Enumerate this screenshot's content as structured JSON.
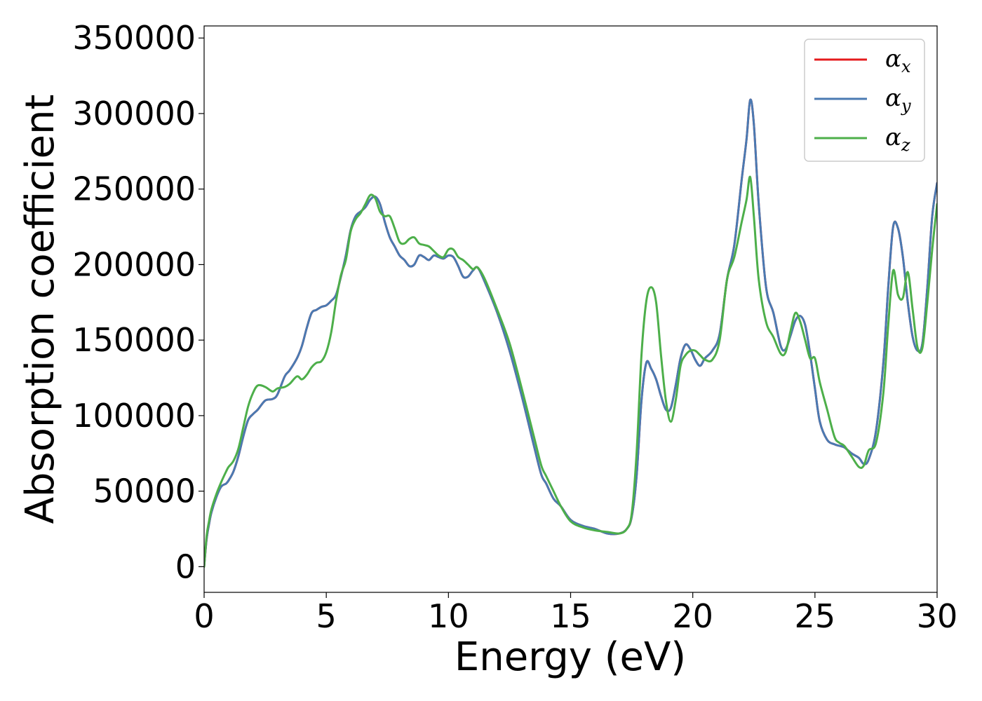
{
  "chart_data": {
    "type": "line",
    "xlabel": "Energy (eV)",
    "ylabel": "Absorption coefficient",
    "xlim": [
      0,
      30
    ],
    "ylim": [
      -17000,
      358000
    ],
    "xticks": [
      0,
      5,
      10,
      15,
      20,
      25,
      30
    ],
    "yticks": [
      0,
      50000,
      100000,
      150000,
      200000,
      250000,
      300000,
      350000
    ],
    "grid": false,
    "legend_position": "top-right",
    "series": [
      {
        "name": "αx",
        "legend_symbol": "α",
        "legend_subscript": "x",
        "color": "#e41a1c",
        "x": [
          0,
          0.1,
          0.2,
          0.3,
          0.5,
          0.7,
          0.9,
          1.0,
          1.2,
          1.4,
          1.6,
          1.8,
          2.0,
          2.2,
          2.5,
          2.8,
          3.0,
          3.3,
          3.5,
          3.8,
          4.0,
          4.2,
          4.4,
          4.6,
          4.8,
          5.0,
          5.2,
          5.4,
          5.6,
          5.8,
          6.0,
          6.2,
          6.4,
          6.6,
          6.8,
          7.0,
          7.2,
          7.4,
          7.6,
          7.8,
          8.0,
          8.2,
          8.4,
          8.6,
          8.8,
          9.0,
          9.2,
          9.4,
          9.6,
          9.8,
          10.0,
          10.2,
          10.4,
          10.6,
          10.8,
          11.0,
          11.2,
          11.5,
          12.0,
          12.5,
          13.0,
          13.5,
          13.8,
          14.0,
          14.3,
          14.6,
          15.0,
          15.5,
          16.0,
          16.5,
          17.0,
          17.3,
          17.5,
          17.7,
          17.9,
          18.1,
          18.3,
          18.5,
          18.7,
          18.9,
          19.1,
          19.3,
          19.5,
          19.7,
          19.9,
          20.1,
          20.3,
          20.5,
          20.8,
          21.1,
          21.4,
          21.7,
          22.0,
          22.2,
          22.35,
          22.5,
          22.7,
          23.0,
          23.3,
          23.6,
          23.8,
          24.0,
          24.2,
          24.4,
          24.6,
          24.8,
          25.0,
          25.2,
          25.5,
          25.8,
          26.0,
          26.2,
          26.5,
          26.8,
          27.0,
          27.2,
          27.5,
          27.8,
          28.0,
          28.2,
          28.4,
          28.6,
          28.8,
          29.0,
          29.2,
          29.4,
          29.6,
          29.8,
          30.0
        ],
        "values": [
          0,
          18000,
          28000,
          36000,
          46000,
          53000,
          55000,
          57000,
          63000,
          73000,
          86000,
          97000,
          101000,
          104000,
          110000,
          111000,
          114000,
          126000,
          130000,
          138000,
          146000,
          158000,
          168000,
          170000,
          172000,
          173000,
          176000,
          180000,
          192000,
          206000,
          223000,
          232000,
          235000,
          238000,
          243000,
          245000,
          240000,
          228000,
          218000,
          212000,
          206000,
          203000,
          199000,
          200000,
          206000,
          205000,
          203000,
          206000,
          205000,
          204000,
          206000,
          205000,
          199000,
          192000,
          192000,
          196000,
          198000,
          188000,
          168000,
          143000,
          113000,
          80000,
          61000,
          55000,
          45000,
          40000,
          31000,
          27000,
          25000,
          22000,
          22000,
          25000,
          33000,
          60000,
          110000,
          135000,
          131000,
          124000,
          113000,
          104000,
          105000,
          120000,
          138000,
          147000,
          144000,
          137000,
          133000,
          138000,
          143000,
          154000,
          190000,
          213000,
          256000,
          283000,
          309000,
          293000,
          240000,
          185000,
          168000,
          146000,
          144000,
          153000,
          163000,
          166000,
          160000,
          141000,
          118000,
          96000,
          84000,
          81000,
          80000,
          79000,
          75000,
          72000,
          68000,
          71000,
          90000,
          135000,
          185000,
          225000,
          224000,
          205000,
          175000,
          152000,
          143000,
          148000,
          185000,
          232000,
          254000
        ]
      },
      {
        "name": "αy",
        "legend_symbol": "α",
        "legend_subscript": "y",
        "color": "#4a7ab2",
        "x": [
          0,
          0.1,
          0.2,
          0.3,
          0.5,
          0.7,
          0.9,
          1.0,
          1.2,
          1.4,
          1.6,
          1.8,
          2.0,
          2.2,
          2.5,
          2.8,
          3.0,
          3.3,
          3.5,
          3.8,
          4.0,
          4.2,
          4.4,
          4.6,
          4.8,
          5.0,
          5.2,
          5.4,
          5.6,
          5.8,
          6.0,
          6.2,
          6.4,
          6.6,
          6.8,
          7.0,
          7.2,
          7.4,
          7.6,
          7.8,
          8.0,
          8.2,
          8.4,
          8.6,
          8.8,
          9.0,
          9.2,
          9.4,
          9.6,
          9.8,
          10.0,
          10.2,
          10.4,
          10.6,
          10.8,
          11.0,
          11.2,
          11.5,
          12.0,
          12.5,
          13.0,
          13.5,
          13.8,
          14.0,
          14.3,
          14.6,
          15.0,
          15.5,
          16.0,
          16.5,
          17.0,
          17.3,
          17.5,
          17.7,
          17.9,
          18.1,
          18.3,
          18.5,
          18.7,
          18.9,
          19.1,
          19.3,
          19.5,
          19.7,
          19.9,
          20.1,
          20.3,
          20.5,
          20.8,
          21.1,
          21.4,
          21.7,
          22.0,
          22.2,
          22.35,
          22.5,
          22.7,
          23.0,
          23.3,
          23.6,
          23.8,
          24.0,
          24.2,
          24.4,
          24.6,
          24.8,
          25.0,
          25.2,
          25.5,
          25.8,
          26.0,
          26.2,
          26.5,
          26.8,
          27.0,
          27.2,
          27.5,
          27.8,
          28.0,
          28.2,
          28.4,
          28.6,
          28.8,
          29.0,
          29.2,
          29.4,
          29.6,
          29.8,
          30.0
        ],
        "values": [
          0,
          18000,
          28000,
          36000,
          46000,
          53000,
          55000,
          57000,
          63000,
          73000,
          86000,
          97000,
          101000,
          104000,
          110000,
          111000,
          114000,
          126000,
          130000,
          138000,
          146000,
          158000,
          168000,
          170000,
          172000,
          173000,
          176000,
          180000,
          192000,
          206000,
          223000,
          232000,
          235000,
          238000,
          243000,
          245000,
          240000,
          228000,
          218000,
          212000,
          206000,
          203000,
          199000,
          200000,
          206000,
          205000,
          203000,
          206000,
          205000,
          204000,
          206000,
          205000,
          199000,
          192000,
          192000,
          196000,
          198000,
          188000,
          168000,
          143000,
          113000,
          80000,
          61000,
          55000,
          45000,
          40000,
          31000,
          27000,
          25000,
          22000,
          22000,
          25000,
          33000,
          60000,
          110000,
          135000,
          131000,
          124000,
          113000,
          104000,
          105000,
          120000,
          138000,
          147000,
          144000,
          137000,
          133000,
          138000,
          143000,
          154000,
          190000,
          213000,
          256000,
          283000,
          309000,
          293000,
          240000,
          185000,
          168000,
          146000,
          144000,
          153000,
          163000,
          166000,
          160000,
          141000,
          118000,
          96000,
          84000,
          81000,
          80000,
          79000,
          75000,
          72000,
          68000,
          71000,
          90000,
          135000,
          185000,
          225000,
          224000,
          205000,
          175000,
          152000,
          143000,
          148000,
          185000,
          232000,
          254000
        ]
      },
      {
        "name": "αz",
        "legend_symbol": "α",
        "legend_subscript": "z",
        "color": "#4daf4a",
        "x": [
          0,
          0.1,
          0.2,
          0.3,
          0.5,
          0.7,
          0.9,
          1.0,
          1.2,
          1.4,
          1.6,
          1.8,
          2.0,
          2.2,
          2.5,
          2.8,
          3.0,
          3.3,
          3.5,
          3.8,
          4.0,
          4.2,
          4.4,
          4.6,
          4.8,
          5.0,
          5.2,
          5.4,
          5.6,
          5.8,
          6.0,
          6.2,
          6.4,
          6.6,
          6.8,
          7.0,
          7.2,
          7.4,
          7.6,
          7.8,
          8.0,
          8.2,
          8.4,
          8.6,
          8.8,
          9.0,
          9.2,
          9.4,
          9.6,
          9.8,
          10.0,
          10.2,
          10.4,
          10.6,
          10.8,
          11.0,
          11.2,
          11.5,
          12.0,
          12.5,
          13.0,
          13.5,
          13.8,
          14.0,
          14.3,
          14.6,
          15.0,
          15.5,
          16.0,
          16.5,
          17.0,
          17.3,
          17.5,
          17.7,
          17.9,
          18.1,
          18.3,
          18.5,
          18.7,
          18.9,
          19.1,
          19.3,
          19.5,
          19.7,
          19.9,
          20.1,
          20.3,
          20.5,
          20.8,
          21.1,
          21.4,
          21.7,
          22.0,
          22.2,
          22.35,
          22.5,
          22.7,
          23.0,
          23.3,
          23.6,
          23.8,
          24.0,
          24.2,
          24.4,
          24.6,
          24.8,
          25.0,
          25.2,
          25.5,
          25.8,
          26.0,
          26.2,
          26.5,
          26.8,
          27.0,
          27.2,
          27.5,
          27.8,
          28.0,
          28.2,
          28.4,
          28.6,
          28.8,
          29.0,
          29.2,
          29.4,
          29.6,
          29.8,
          30.0
        ],
        "values": [
          0,
          20000,
          30000,
          38000,
          48000,
          56000,
          63000,
          66000,
          70000,
          78000,
          92000,
          106000,
          115000,
          120000,
          119000,
          116000,
          118000,
          119000,
          121000,
          126000,
          124000,
          127000,
          132000,
          135000,
          136000,
          142000,
          155000,
          176000,
          193000,
          203000,
          222000,
          230000,
          234000,
          240000,
          246000,
          244000,
          235000,
          232000,
          232000,
          224000,
          215000,
          214000,
          217000,
          218000,
          214000,
          213000,
          212000,
          209000,
          206000,
          205000,
          210000,
          210000,
          205000,
          203000,
          200000,
          197000,
          198000,
          190000,
          170000,
          148000,
          118000,
          86000,
          67000,
          60000,
          50000,
          40000,
          30000,
          26000,
          24000,
          23000,
          22000,
          25000,
          35000,
          75000,
          140000,
          176000,
          185000,
          175000,
          140000,
          110000,
          96000,
          110000,
          133000,
          140000,
          143000,
          143000,
          140000,
          137000,
          137000,
          150000,
          190000,
          205000,
          228000,
          243000,
          258000,
          232000,
          190000,
          162000,
          152000,
          141000,
          142000,
          156000,
          168000,
          162000,
          150000,
          138000,
          138000,
          122000,
          104000,
          86000,
          82000,
          80000,
          73000,
          66000,
          67000,
          77000,
          82000,
          115000,
          160000,
          196000,
          180000,
          178000,
          195000,
          170000,
          145000,
          145000,
          175000,
          210000,
          240000
        ]
      }
    ]
  }
}
